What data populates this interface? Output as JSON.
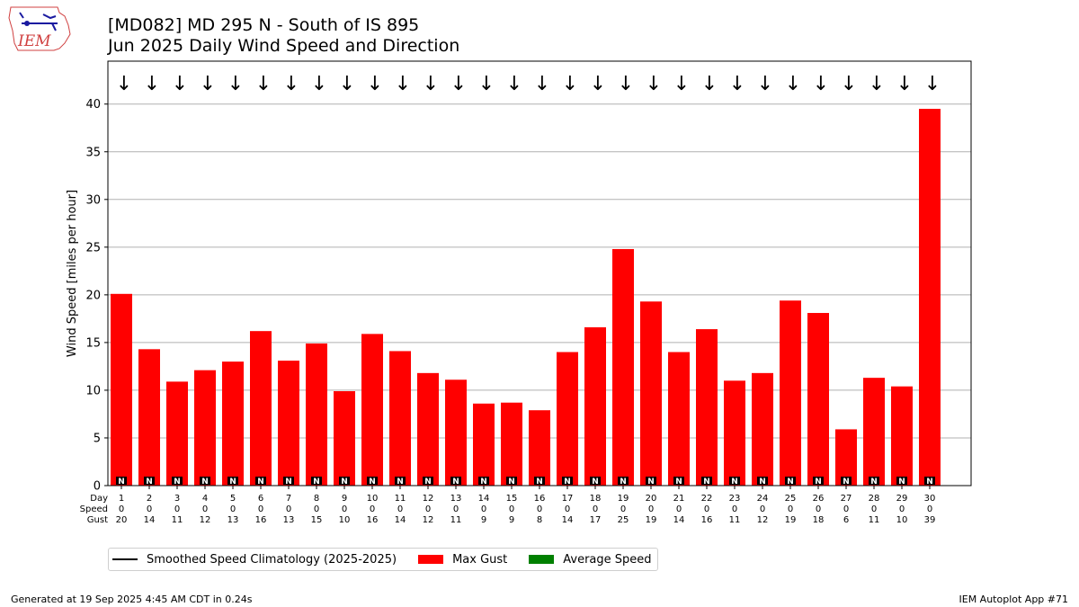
{
  "header": {
    "title_line1": "[MD082] MD 295 N - South of IS 895",
    "title_line2": "Jun 2025 Daily Wind Speed and Direction",
    "logo_text": "IEM"
  },
  "footer": {
    "generated": "Generated at 19 Sep 2025 4:45 AM CDT in 0.24s",
    "app": "IEM Autoplot App #71"
  },
  "legend": {
    "items": [
      {
        "label": "Smoothed Speed Climatology (2025-2025)",
        "kind": "line",
        "color": "#000000"
      },
      {
        "label": "Max Gust",
        "kind": "box",
        "color": "#ff0000"
      },
      {
        "label": "Average Speed",
        "kind": "box",
        "color": "#008000"
      }
    ]
  },
  "chart_data": {
    "type": "bar",
    "ylabel": "Wind Speed [miles per hour]",
    "ylim": [
      0,
      44.5
    ],
    "yticks": [
      0,
      5,
      10,
      15,
      20,
      25,
      30,
      35,
      40
    ],
    "grid": "horizontal",
    "row_labels": [
      "Day",
      "Speed",
      "Gust"
    ],
    "days": [
      1,
      2,
      3,
      4,
      5,
      6,
      7,
      8,
      9,
      10,
      11,
      12,
      13,
      14,
      15,
      16,
      17,
      18,
      19,
      20,
      21,
      22,
      23,
      24,
      25,
      26,
      27,
      28,
      29,
      30
    ],
    "speed_row": [
      0,
      0,
      0,
      0,
      0,
      0,
      0,
      0,
      0,
      0,
      0,
      0,
      0,
      0,
      0,
      0,
      0,
      0,
      0,
      0,
      0,
      0,
      0,
      0,
      0,
      0,
      0,
      0,
      0,
      0
    ],
    "gust_row": [
      20,
      14,
      11,
      12,
      13,
      16,
      13,
      15,
      10,
      16,
      14,
      12,
      11,
      9,
      9,
      8,
      14,
      17,
      25,
      19,
      14,
      16,
      11,
      12,
      19,
      18,
      6,
      11,
      10,
      39
    ],
    "max_gust_values": [
      20.1,
      14.3,
      10.9,
      12.1,
      13.0,
      16.2,
      13.1,
      14.9,
      9.9,
      15.9,
      14.1,
      11.8,
      11.1,
      8.6,
      8.7,
      7.9,
      14.0,
      16.6,
      24.8,
      19.3,
      14.0,
      16.4,
      11.0,
      11.8,
      19.4,
      18.1,
      5.9,
      11.3,
      10.4,
      39.5
    ],
    "average_speed_values": [
      0,
      0,
      0,
      0,
      0,
      0,
      0,
      0,
      0,
      0,
      0,
      0,
      0,
      0,
      0,
      0,
      0,
      0,
      0,
      0,
      0,
      0,
      0,
      0,
      0,
      0,
      0,
      0,
      0,
      0
    ],
    "direction_arrows": "↓",
    "direction_letter": "N",
    "colors": {
      "max_gust": "#ff0000",
      "average_speed": "#008000",
      "climatology": "#000000"
    }
  }
}
